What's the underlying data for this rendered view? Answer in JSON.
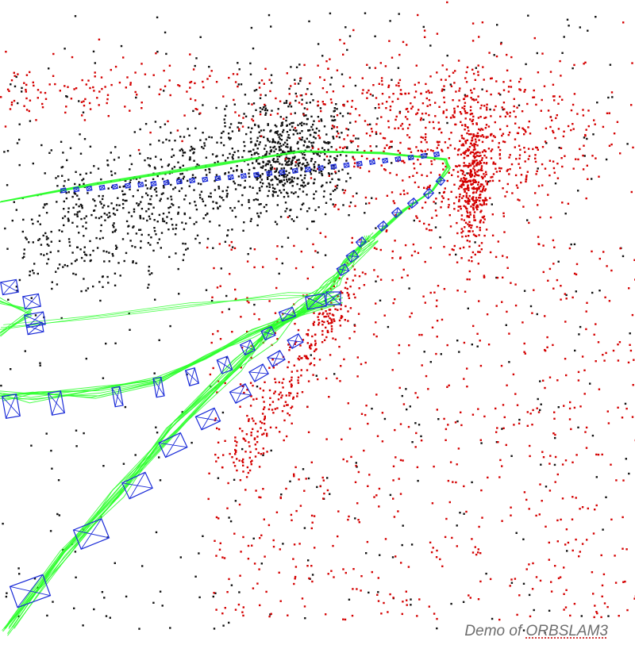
{
  "caption": {
    "prefix": "Demo of ",
    "link_text": "ORBSLAM3"
  },
  "colors": {
    "background": "#ffffff",
    "map_points_reference": "#d40000",
    "map_points_other": "#111111",
    "trajectory": "#2cff2c",
    "keyframes": "#1a2bd8",
    "caption_text": "#6e6e6e"
  },
  "viewer": {
    "content": "ORB-SLAM3 map viewer: sparse 3D point cloud with keyframe camera frustums and covisibility graph"
  }
}
